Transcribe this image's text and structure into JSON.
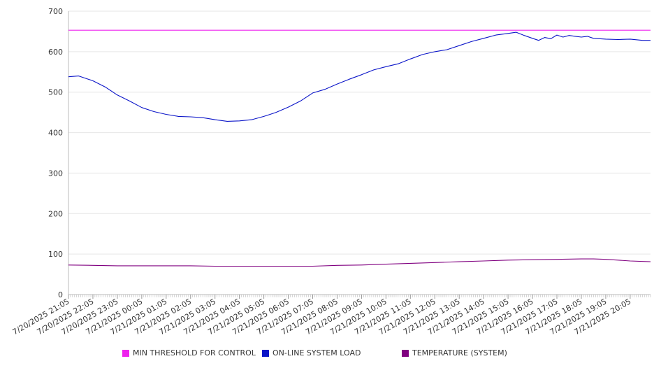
{
  "chart_data": {
    "type": "line",
    "title": "",
    "xlabel": "",
    "ylabel": "",
    "ylim": [
      0,
      700
    ],
    "y_ticks": [
      0,
      100,
      200,
      300,
      400,
      500,
      600,
      700
    ],
    "grid": true,
    "legend_position": "bottom",
    "x_ticks": [
      "7/20/2025 21:05",
      "7/20/2025 22:05",
      "7/20/2025 23:05",
      "7/21/2025 00:05",
      "7/21/2025 01:05",
      "7/21/2025 02:05",
      "7/21/2025 03:05",
      "7/21/2025 04:05",
      "7/21/2025 05:05",
      "7/21/2025 06:05",
      "7/21/2025 07:05",
      "7/21/2025 08:05",
      "7/21/2025 09:05",
      "7/21/2025 10:05",
      "7/21/2025 11:05",
      "7/21/2025 12:05",
      "7/21/2025 13:05",
      "7/21/2025 14:05",
      "7/21/2025 15:05",
      "7/21/2025 16:05",
      "7/21/2025 17:05",
      "7/21/2025 18:05",
      "7/21/2025 19:05",
      "7/21/2025 20:05"
    ],
    "x_end": "7/21/2025 20:55",
    "series": [
      {
        "name": "MIN THRESHOLD FOR CONTROL",
        "color": "#ee22ee",
        "points": [
          [
            "7/20/2025 21:05",
            653
          ],
          [
            "7/21/2025 20:55",
            653
          ]
        ]
      },
      {
        "name": "ON-LINE SYSTEM LOAD",
        "color": "#0a14c8",
        "points": [
          [
            "7/20/2025 21:05",
            538
          ],
          [
            "7/20/2025 21:30",
            540
          ],
          [
            "7/20/2025 22:05",
            528
          ],
          [
            "7/20/2025 22:35",
            513
          ],
          [
            "7/20/2025 23:05",
            493
          ],
          [
            "7/20/2025 23:35",
            478
          ],
          [
            "7/21/2025 00:05",
            462
          ],
          [
            "7/21/2025 00:35",
            452
          ],
          [
            "7/21/2025 01:05",
            445
          ],
          [
            "7/21/2025 01:35",
            440
          ],
          [
            "7/21/2025 02:05",
            439
          ],
          [
            "7/21/2025 02:35",
            437
          ],
          [
            "7/21/2025 03:05",
            432
          ],
          [
            "7/21/2025 03:35",
            428
          ],
          [
            "7/21/2025 04:05",
            429
          ],
          [
            "7/21/2025 04:35",
            432
          ],
          [
            "7/21/2025 05:05",
            440
          ],
          [
            "7/21/2025 05:35",
            450
          ],
          [
            "7/21/2025 06:05",
            463
          ],
          [
            "7/21/2025 06:35",
            478
          ],
          [
            "7/21/2025 07:05",
            498
          ],
          [
            "7/21/2025 07:35",
            507
          ],
          [
            "7/21/2025 08:05",
            520
          ],
          [
            "7/21/2025 08:35",
            532
          ],
          [
            "7/21/2025 09:05",
            543
          ],
          [
            "7/21/2025 09:35",
            555
          ],
          [
            "7/21/2025 10:05",
            563
          ],
          [
            "7/21/2025 10:35",
            570
          ],
          [
            "7/21/2025 11:05",
            582
          ],
          [
            "7/21/2025 11:35",
            593
          ],
          [
            "7/21/2025 12:05",
            600
          ],
          [
            "7/21/2025 12:35",
            605
          ],
          [
            "7/21/2025 13:05",
            615
          ],
          [
            "7/21/2025 13:35",
            625
          ],
          [
            "7/21/2025 14:05",
            633
          ],
          [
            "7/21/2025 14:35",
            641
          ],
          [
            "7/21/2025 15:05",
            645
          ],
          [
            "7/21/2025 15:25",
            648
          ],
          [
            "7/21/2025 15:45",
            640
          ],
          [
            "7/21/2025 16:05",
            633
          ],
          [
            "7/21/2025 16:20",
            628
          ],
          [
            "7/21/2025 16:35",
            635
          ],
          [
            "7/21/2025 16:50",
            632
          ],
          [
            "7/21/2025 17:05",
            641
          ],
          [
            "7/21/2025 17:20",
            636
          ],
          [
            "7/21/2025 17:35",
            640
          ],
          [
            "7/21/2025 17:50",
            638
          ],
          [
            "7/21/2025 18:05",
            636
          ],
          [
            "7/21/2025 18:20",
            638
          ],
          [
            "7/21/2025 18:35",
            633
          ],
          [
            "7/21/2025 19:05",
            631
          ],
          [
            "7/21/2025 19:35",
            630
          ],
          [
            "7/21/2025 20:05",
            631
          ],
          [
            "7/21/2025 20:35",
            628
          ],
          [
            "7/21/2025 20:55",
            628
          ]
        ]
      },
      {
        "name": "TEMPERATURE (SYSTEM)",
        "color": "#800080",
        "points": [
          [
            "7/20/2025 21:05",
            73
          ],
          [
            "7/20/2025 22:05",
            72
          ],
          [
            "7/20/2025 23:05",
            71
          ],
          [
            "7/21/2025 00:05",
            71
          ],
          [
            "7/21/2025 01:05",
            71
          ],
          [
            "7/21/2025 02:05",
            71
          ],
          [
            "7/21/2025 03:05",
            70
          ],
          [
            "7/21/2025 04:05",
            70
          ],
          [
            "7/21/2025 05:05",
            70
          ],
          [
            "7/21/2025 06:05",
            70
          ],
          [
            "7/21/2025 07:05",
            70
          ],
          [
            "7/21/2025 08:05",
            72
          ],
          [
            "7/21/2025 09:05",
            73
          ],
          [
            "7/21/2025 10:05",
            75
          ],
          [
            "7/21/2025 11:05",
            77
          ],
          [
            "7/21/2025 12:05",
            79
          ],
          [
            "7/21/2025 13:05",
            81
          ],
          [
            "7/21/2025 14:05",
            83
          ],
          [
            "7/21/2025 15:05",
            85
          ],
          [
            "7/21/2025 16:05",
            86
          ],
          [
            "7/21/2025 17:05",
            87
          ],
          [
            "7/21/2025 18:05",
            88
          ],
          [
            "7/21/2025 18:35",
            88
          ],
          [
            "7/21/2025 19:05",
            87
          ],
          [
            "7/21/2025 19:35",
            85
          ],
          [
            "7/21/2025 20:05",
            83
          ],
          [
            "7/21/2025 20:55",
            81
          ]
        ]
      }
    ]
  }
}
